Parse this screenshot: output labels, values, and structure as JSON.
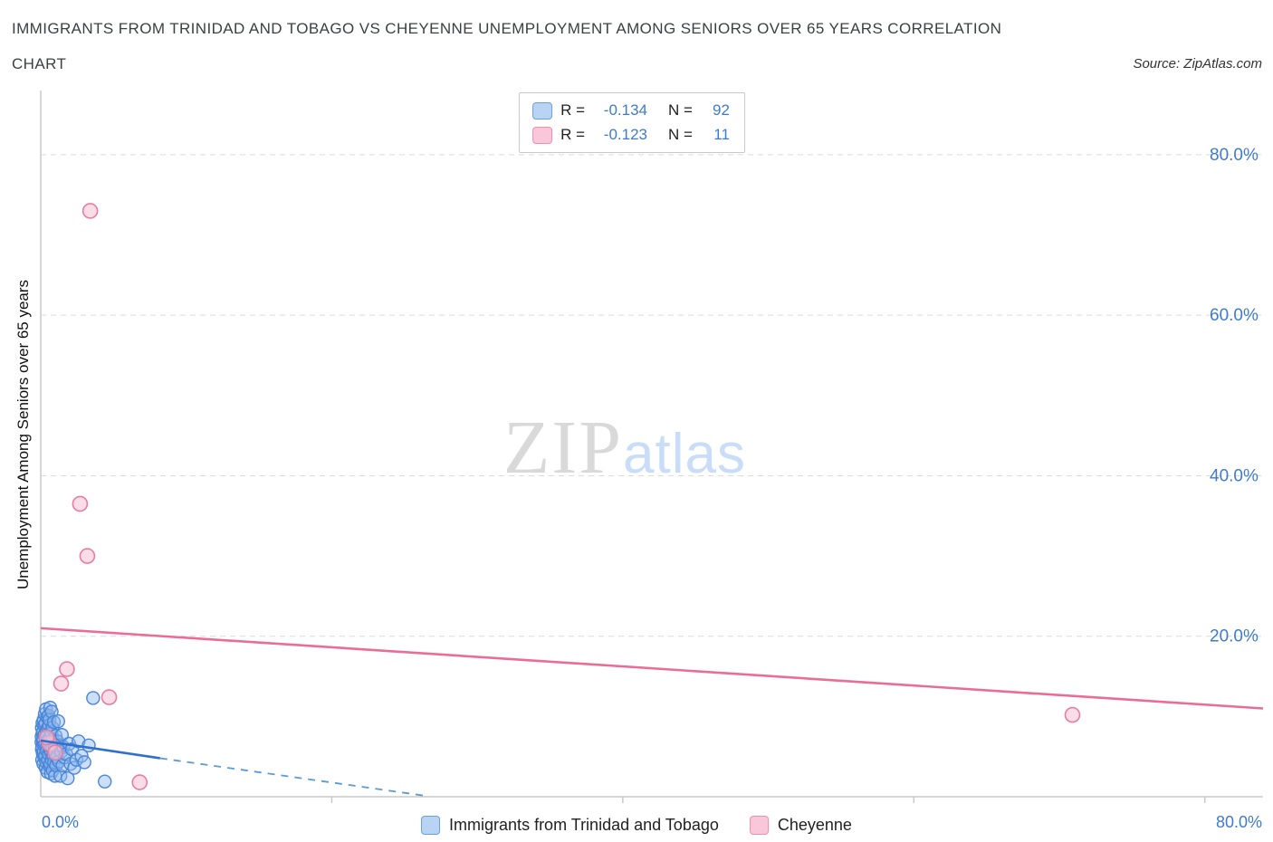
{
  "header": {
    "title_line1": "IMMIGRANTS FROM TRINIDAD AND TOBAGO VS CHEYENNE UNEMPLOYMENT AMONG SENIORS OVER 65 YEARS CORRELATION",
    "title_line2": "CHART",
    "source": "Source: ZipAtlas.com"
  },
  "watermark": {
    "part1": "ZIP",
    "part2": "atlas"
  },
  "legend_box": {
    "rows": [
      {
        "series": "Immigrants from Trinidad and Tobago",
        "r_label": "R =",
        "r_value": "-0.134",
        "n_label": "N =",
        "n_value": "92"
      },
      {
        "series": "Cheyenne",
        "r_label": "R =",
        "r_value": "-0.123",
        "n_label": "N =",
        "n_value": "11"
      }
    ]
  },
  "axes": {
    "y_label": "Unemployment Among Seniors over 65 years",
    "y_tick_labels": [
      "80.0%",
      "60.0%",
      "40.0%",
      "20.0%"
    ],
    "x_tick_left": "0.0%",
    "x_tick_right": "80.0%"
  },
  "bottom_legend": {
    "item1": "Immigrants from Trinidad and Tobago",
    "item2": "Cheyenne"
  },
  "colors": {
    "blue_fill": "rgba(144,183,238,0.45)",
    "blue_stroke": "#4a86d8",
    "pink_fill": "rgba(249,199,217,0.6)",
    "pink_stroke": "#e87da0",
    "blue_line": "#2f6fce",
    "blue_line_dash": "#5b9bd5",
    "pink_line": "#ea6d96",
    "grid": "#dcdcdc",
    "axis": "#c9c9c9",
    "tick_label": "#3f7ad1"
  },
  "chart_data": {
    "type": "scatter",
    "title": "Immigrants from Trinidad and Tobago vs Cheyenne Unemployment Among Seniors over 65 years Correlation",
    "xlabel": "Immigrants from Trinidad and Tobago (%)",
    "ylabel": "Unemployment Among Seniors over 65 years (%)",
    "xlim": [
      0,
      84
    ],
    "ylim": [
      0,
      88
    ],
    "grid_y_percent": [
      20,
      40,
      60,
      80
    ],
    "x_axis_ticks_percent": [
      20,
      40,
      60,
      80
    ],
    "legend_position": "bottom",
    "series": [
      {
        "name": "Immigrants from Trinidad and Tobago",
        "R": -0.134,
        "N": 92,
        "points": [
          [
            0.05,
            6.8
          ],
          [
            0.06,
            7.5
          ],
          [
            0.08,
            5.9
          ],
          [
            0.08,
            8.6
          ],
          [
            0.1,
            4.6
          ],
          [
            0.1,
            6.2
          ],
          [
            0.12,
            7.9
          ],
          [
            0.12,
            9.2
          ],
          [
            0.14,
            5.4
          ],
          [
            0.15,
            6.9
          ],
          [
            0.16,
            8.1
          ],
          [
            0.18,
            4.1
          ],
          [
            0.18,
            7.1
          ],
          [
            0.2,
            9.6
          ],
          [
            0.2,
            5.6
          ],
          [
            0.22,
            6.4
          ],
          [
            0.24,
            8.9
          ],
          [
            0.25,
            4.9
          ],
          [
            0.26,
            7.7
          ],
          [
            0.28,
            10.3
          ],
          [
            0.3,
            5.1
          ],
          [
            0.3,
            6.6
          ],
          [
            0.32,
            9.1
          ],
          [
            0.34,
            3.6
          ],
          [
            0.35,
            7.3
          ],
          [
            0.36,
            10.9
          ],
          [
            0.38,
            4.3
          ],
          [
            0.4,
            6.1
          ],
          [
            0.4,
            8.3
          ],
          [
            0.42,
            5.7
          ],
          [
            0.44,
            7.6
          ],
          [
            0.45,
            9.9
          ],
          [
            0.46,
            3.1
          ],
          [
            0.48,
            6.9
          ],
          [
            0.5,
            8.6
          ],
          [
            0.5,
            4.6
          ],
          [
            0.52,
            7.1
          ],
          [
            0.54,
            10.1
          ],
          [
            0.55,
            5.3
          ],
          [
            0.56,
            6.4
          ],
          [
            0.58,
            8.9
          ],
          [
            0.6,
            3.9
          ],
          [
            0.6,
            9.6
          ],
          [
            0.62,
            5.9
          ],
          [
            0.64,
            7.3
          ],
          [
            0.65,
            11.1
          ],
          [
            0.66,
            4.1
          ],
          [
            0.68,
            6.6
          ],
          [
            0.7,
            8.1
          ],
          [
            0.7,
            2.9
          ],
          [
            0.72,
            5.6
          ],
          [
            0.74,
            7.9
          ],
          [
            0.75,
            10.6
          ],
          [
            0.76,
            4.6
          ],
          [
            0.78,
            6.1
          ],
          [
            0.8,
            8.6
          ],
          [
            0.82,
            3.3
          ],
          [
            0.84,
            7.1
          ],
          [
            0.85,
            5.1
          ],
          [
            0.88,
            6.9
          ],
          [
            0.9,
            9.3
          ],
          [
            0.92,
            4.3
          ],
          [
            0.95,
            6.3
          ],
          [
            0.98,
            2.6
          ],
          [
            1.0,
            5.6
          ],
          [
            1.02,
            7.6
          ],
          [
            1.05,
            3.9
          ],
          [
            1.08,
            6.1
          ],
          [
            1.1,
            4.9
          ],
          [
            1.15,
            6.9
          ],
          [
            1.2,
            9.4
          ],
          [
            1.25,
            4.4
          ],
          [
            1.3,
            6.4
          ],
          [
            1.35,
            2.6
          ],
          [
            1.4,
            5.6
          ],
          [
            1.45,
            7.7
          ],
          [
            1.5,
            3.9
          ],
          [
            1.55,
            6.2
          ],
          [
            1.65,
            4.9
          ],
          [
            1.75,
            5.3
          ],
          [
            1.85,
            2.3
          ],
          [
            1.95,
            6.6
          ],
          [
            2.05,
            4.1
          ],
          [
            2.15,
            5.9
          ],
          [
            2.3,
            3.6
          ],
          [
            2.45,
            4.6
          ],
          [
            2.6,
            6.9
          ],
          [
            2.8,
            5.1
          ],
          [
            3.0,
            4.3
          ],
          [
            3.3,
            6.4
          ],
          [
            3.6,
            12.3
          ],
          [
            4.4,
            1.9
          ]
        ]
      },
      {
        "name": "Cheyenne",
        "R": -0.123,
        "N": 11,
        "points": [
          [
            3.4,
            73.0
          ],
          [
            2.7,
            36.5
          ],
          [
            3.2,
            30.0
          ],
          [
            1.8,
            15.9
          ],
          [
            1.4,
            14.1
          ],
          [
            4.7,
            12.4
          ],
          [
            6.8,
            1.8
          ],
          [
            70.9,
            10.2
          ],
          [
            0.6,
            6.6
          ],
          [
            1.0,
            5.5
          ],
          [
            0.4,
            7.4
          ]
        ]
      }
    ],
    "trend_lines": [
      {
        "series": "Immigrants from Trinidad and Tobago",
        "solid": [
          [
            0,
            7.0
          ],
          [
            8.2,
            4.8
          ]
        ],
        "dashed": [
          [
            8.2,
            4.8
          ],
          [
            26.5,
            0.1
          ]
        ]
      },
      {
        "series": "Cheyenne",
        "solid": [
          [
            0,
            21.0
          ],
          [
            84,
            11.0
          ]
        ],
        "dashed": null
      }
    ]
  }
}
